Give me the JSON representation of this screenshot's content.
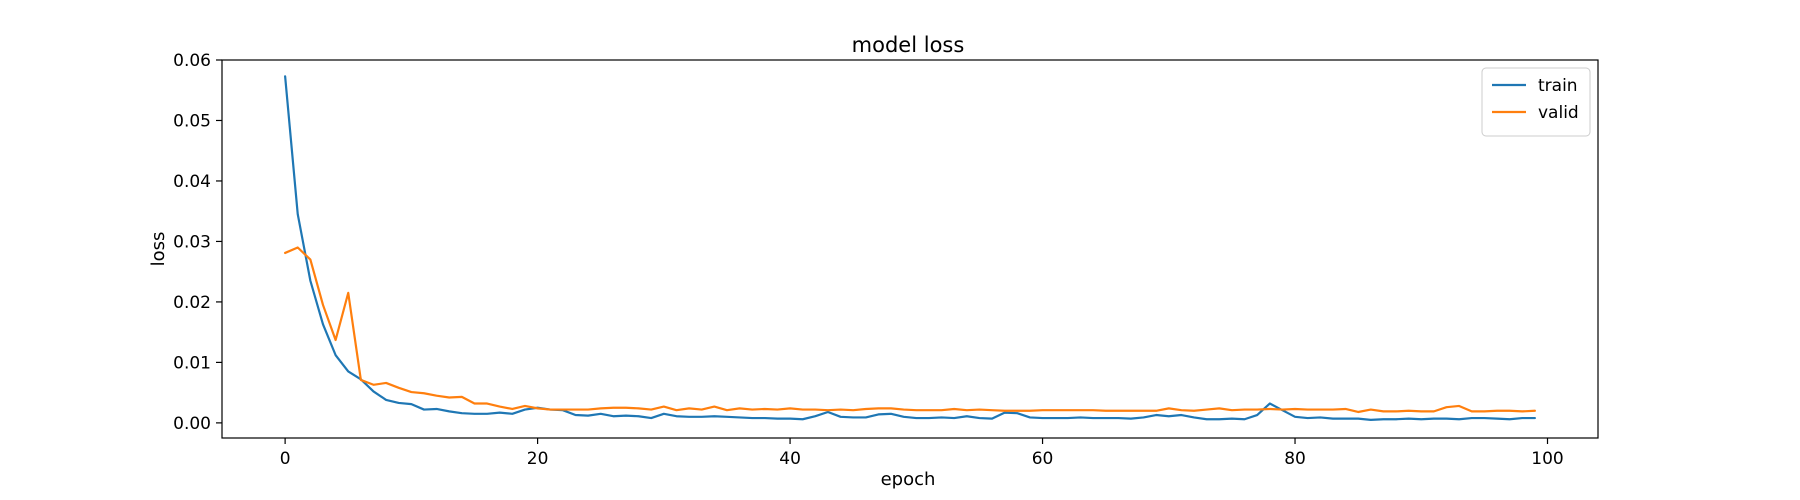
{
  "chart_data": {
    "type": "line",
    "title": "model loss",
    "xlabel": "epoch",
    "ylabel": "loss",
    "xlim": [
      -5,
      104
    ],
    "ylim": [
      -0.0025,
      0.06
    ],
    "xticks": [
      0,
      20,
      40,
      60,
      80,
      100
    ],
    "yticks": [
      0.0,
      0.01,
      0.02,
      0.03,
      0.04,
      0.05,
      0.06
    ],
    "xtick_labels": [
      "0",
      "20",
      "40",
      "60",
      "80",
      "100"
    ],
    "ytick_labels": [
      "0.00",
      "0.01",
      "0.02",
      "0.03",
      "0.04",
      "0.05",
      "0.06"
    ],
    "grid": false,
    "legend_position": "top-right",
    "x": [
      0,
      1,
      2,
      3,
      4,
      5,
      6,
      7,
      8,
      9,
      10,
      11,
      12,
      13,
      14,
      15,
      16,
      17,
      18,
      19,
      20,
      21,
      22,
      23,
      24,
      25,
      26,
      27,
      28,
      29,
      30,
      31,
      32,
      33,
      34,
      35,
      36,
      37,
      38,
      39,
      40,
      41,
      42,
      43,
      44,
      45,
      46,
      47,
      48,
      49,
      50,
      51,
      52,
      53,
      54,
      55,
      56,
      57,
      58,
      59,
      60,
      61,
      62,
      63,
      64,
      65,
      66,
      67,
      68,
      69,
      70,
      71,
      72,
      73,
      74,
      75,
      76,
      77,
      78,
      79,
      80,
      81,
      82,
      83,
      84,
      85,
      86,
      87,
      88,
      89,
      90,
      91,
      92,
      93,
      94,
      95,
      96,
      97,
      98,
      99
    ],
    "series": [
      {
        "name": "train",
        "color": "#1f77b4",
        "values": [
          0.0573,
          0.0345,
          0.0235,
          0.0163,
          0.0112,
          0.0085,
          0.0072,
          0.0052,
          0.0038,
          0.0033,
          0.0031,
          0.0022,
          0.0023,
          0.0019,
          0.0016,
          0.0015,
          0.0015,
          0.0017,
          0.0015,
          0.0022,
          0.0025,
          0.0022,
          0.0021,
          0.0013,
          0.0012,
          0.0015,
          0.0011,
          0.0012,
          0.0011,
          0.0008,
          0.0015,
          0.0011,
          0.001,
          0.001,
          0.0011,
          0.001,
          0.0009,
          0.0008,
          0.0008,
          0.0007,
          0.0007,
          0.0006,
          0.0011,
          0.0018,
          0.001,
          0.0009,
          0.0009,
          0.0014,
          0.0015,
          0.001,
          0.0008,
          0.0008,
          0.0009,
          0.0008,
          0.0011,
          0.0008,
          0.0007,
          0.0017,
          0.0016,
          0.0009,
          0.0008,
          0.0008,
          0.0008,
          0.0009,
          0.0008,
          0.0008,
          0.0008,
          0.0007,
          0.0009,
          0.0013,
          0.0011,
          0.0013,
          0.0009,
          0.0006,
          0.0006,
          0.0007,
          0.0006,
          0.0013,
          0.0032,
          0.0021,
          0.001,
          0.0008,
          0.0009,
          0.0007,
          0.0007,
          0.0007,
          0.0005,
          0.0006,
          0.0006,
          0.0007,
          0.0006,
          0.0007,
          0.0007,
          0.0006,
          0.0008,
          0.0008,
          0.0007,
          0.0006,
          0.0008,
          0.0008
        ]
      },
      {
        "name": "valid",
        "color": "#ff7f0e",
        "values": [
          0.0281,
          0.029,
          0.027,
          0.0195,
          0.0137,
          0.0215,
          0.0071,
          0.0063,
          0.0066,
          0.0058,
          0.0051,
          0.0049,
          0.0045,
          0.0042,
          0.0043,
          0.0032,
          0.0032,
          0.0027,
          0.0023,
          0.0028,
          0.0024,
          0.0022,
          0.0022,
          0.0022,
          0.0022,
          0.0024,
          0.0025,
          0.0025,
          0.0024,
          0.0022,
          0.0027,
          0.0021,
          0.0024,
          0.0022,
          0.0027,
          0.0021,
          0.0024,
          0.0022,
          0.0023,
          0.0022,
          0.0024,
          0.0022,
          0.0022,
          0.0021,
          0.0022,
          0.0021,
          0.0023,
          0.0024,
          0.0024,
          0.0022,
          0.0021,
          0.0021,
          0.0021,
          0.0023,
          0.0021,
          0.0022,
          0.0021,
          0.002,
          0.002,
          0.002,
          0.0021,
          0.0021,
          0.0021,
          0.0021,
          0.0021,
          0.002,
          0.002,
          0.002,
          0.002,
          0.002,
          0.0024,
          0.0021,
          0.002,
          0.0022,
          0.0024,
          0.0021,
          0.0022,
          0.0022,
          0.0023,
          0.0022,
          0.0023,
          0.0022,
          0.0022,
          0.0022,
          0.0023,
          0.0018,
          0.0022,
          0.0019,
          0.0019,
          0.002,
          0.0019,
          0.0019,
          0.0026,
          0.0028,
          0.0019,
          0.0019,
          0.002,
          0.002,
          0.0019,
          0.002
        ]
      }
    ]
  }
}
